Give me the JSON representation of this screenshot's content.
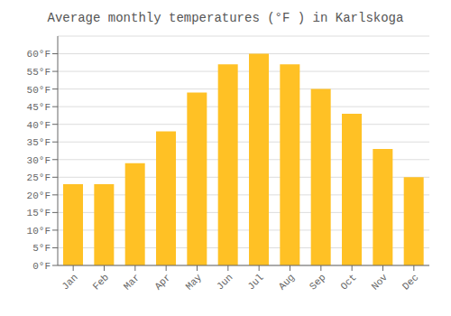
{
  "chart_data": {
    "type": "bar",
    "title": "Average monthly temperatures (°F ) in Karlskoga",
    "categories": [
      "Jan",
      "Feb",
      "Mar",
      "Apr",
      "May",
      "Jun",
      "Jul",
      "Aug",
      "Sep",
      "Oct",
      "Nov",
      "Dec"
    ],
    "values": [
      23,
      23,
      29,
      38,
      49,
      57,
      60,
      57,
      50,
      43,
      33,
      25
    ],
    "color": "#FFC125",
    "ylim": [
      0,
      65
    ],
    "yticks": [
      {
        "value": 0,
        "label": "0°F"
      },
      {
        "value": 5,
        "label": "5°F"
      },
      {
        "value": 10,
        "label": "10°F"
      },
      {
        "value": 15,
        "label": "15°F"
      },
      {
        "value": 20,
        "label": "20°F"
      },
      {
        "value": 25,
        "label": "25°F"
      },
      {
        "value": 30,
        "label": "30°F"
      },
      {
        "value": 35,
        "label": "35°F"
      },
      {
        "value": 40,
        "label": "40°F"
      },
      {
        "value": 45,
        "label": "45°F"
      },
      {
        "value": 50,
        "label": "50°F"
      },
      {
        "value": 55,
        "label": "55°F"
      },
      {
        "value": 60,
        "label": "60°F"
      }
    ],
    "grid": true
  }
}
